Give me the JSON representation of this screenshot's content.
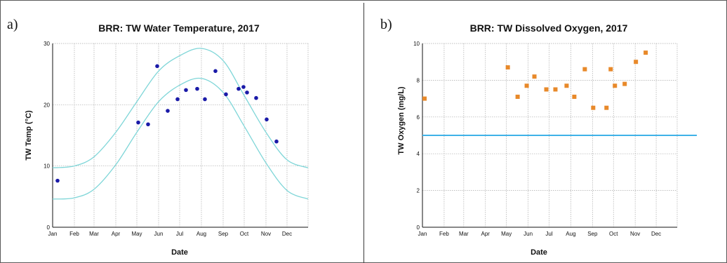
{
  "chart_data": [
    {
      "panel_letter": "a)",
      "type": "scatter",
      "title": "BRR: TW Water Temperature, 2017",
      "xlabel": "Date",
      "ylabel": "TW Temp (°C)",
      "x_ticks": [
        "Jan",
        "Feb",
        "Mar",
        "Apr",
        "May",
        "Jun",
        "Jul",
        "Aug",
        "Sep",
        "Oct",
        "Nov",
        "Dec"
      ],
      "y_ticks": [
        "0",
        "10",
        "20",
        "30"
      ],
      "xlim": [
        "2017-01-01",
        "2017-12-31"
      ],
      "ylim": [
        0,
        30
      ],
      "grid": true,
      "colors": {
        "points": "#1a1aa8",
        "band": "#7fd6d8"
      },
      "series": [
        {
          "values": [
            {
              "x": "2017-01-08",
              "y": 7.6
            },
            {
              "x": "2017-05-03",
              "y": 17.1
            },
            {
              "x": "2017-05-17",
              "y": 16.8
            },
            {
              "x": "2017-05-30",
              "y": 26.3
            },
            {
              "x": "2017-06-14",
              "y": 19.0
            },
            {
              "x": "2017-06-28",
              "y": 20.9
            },
            {
              "x": "2017-07-10",
              "y": 22.4
            },
            {
              "x": "2017-07-26",
              "y": 22.6
            },
            {
              "x": "2017-08-06",
              "y": 20.9
            },
            {
              "x": "2017-08-21",
              "y": 25.5
            },
            {
              "x": "2017-09-05",
              "y": 21.7
            },
            {
              "x": "2017-09-23",
              "y": 22.6
            },
            {
              "x": "2017-09-30",
              "y": 22.9
            },
            {
              "x": "2017-10-05",
              "y": 22.0
            },
            {
              "x": "2017-10-18",
              "y": 21.1
            },
            {
              "x": "2017-11-02",
              "y": 17.6
            },
            {
              "x": "2017-11-16",
              "y": 14.0
            }
          ]
        }
      ],
      "bands": [
        {
          "values": [
            {
              "x": "2017-01-01",
              "y": 9.7
            },
            {
              "x": "2017-02-01",
              "y": 10.0
            },
            {
              "x": "2017-03-01",
              "y": 11.5
            },
            {
              "x": "2017-04-01",
              "y": 15.5
            },
            {
              "x": "2017-05-01",
              "y": 20.5
            },
            {
              "x": "2017-06-01",
              "y": 25.5
            },
            {
              "x": "2017-07-01",
              "y": 28.0
            },
            {
              "x": "2017-08-01",
              "y": 29.2
            },
            {
              "x": "2017-09-01",
              "y": 27.2
            },
            {
              "x": "2017-10-01",
              "y": 21.5
            },
            {
              "x": "2017-11-01",
              "y": 15.5
            },
            {
              "x": "2017-12-01",
              "y": 11.0
            },
            {
              "x": "2017-12-31",
              "y": 9.7
            }
          ]
        },
        {
          "values": [
            {
              "x": "2017-01-01",
              "y": 4.6
            },
            {
              "x": "2017-02-01",
              "y": 4.8
            },
            {
              "x": "2017-03-01",
              "y": 6.2
            },
            {
              "x": "2017-04-01",
              "y": 10.2
            },
            {
              "x": "2017-05-01",
              "y": 15.5
            },
            {
              "x": "2017-06-01",
              "y": 20.5
            },
            {
              "x": "2017-07-01",
              "y": 23.2
            },
            {
              "x": "2017-08-01",
              "y": 24.3
            },
            {
              "x": "2017-09-01",
              "y": 22.0
            },
            {
              "x": "2017-10-01",
              "y": 16.5
            },
            {
              "x": "2017-11-01",
              "y": 10.5
            },
            {
              "x": "2017-12-01",
              "y": 6.0
            },
            {
              "x": "2017-12-31",
              "y": 4.6
            }
          ]
        }
      ],
      "reference_line": null
    },
    {
      "panel_letter": "b)",
      "type": "scatter",
      "title": "BRR: TW Dissolved Oxygen, 2017",
      "xlabel": "Date",
      "ylabel": "TW Oxygen (mg/L)",
      "x_ticks": [
        "Jan",
        "Feb",
        "Mar",
        "Apr",
        "May",
        "Jun",
        "Jul",
        "Aug",
        "Sep",
        "Oct",
        "Nov",
        "Dec"
      ],
      "y_ticks": [
        "0",
        "2",
        "4",
        "6",
        "8",
        "10"
      ],
      "xlim": [
        "2017-01-01",
        "2017-12-31"
      ],
      "ylim": [
        0,
        10
      ],
      "grid": true,
      "colors": {
        "points": "#e8892a",
        "reference": "#3fb2e8"
      },
      "series": [
        {
          "values": [
            {
              "x": "2017-01-04",
              "y": 7.0
            },
            {
              "x": "2017-05-03",
              "y": 8.7
            },
            {
              "x": "2017-05-17",
              "y": 7.1
            },
            {
              "x": "2017-05-30",
              "y": 7.7
            },
            {
              "x": "2017-06-10",
              "y": 8.2
            },
            {
              "x": "2017-06-27",
              "y": 7.5
            },
            {
              "x": "2017-07-10",
              "y": 7.5
            },
            {
              "x": "2017-07-26",
              "y": 7.7
            },
            {
              "x": "2017-08-06",
              "y": 7.1
            },
            {
              "x": "2017-08-21",
              "y": 8.6
            },
            {
              "x": "2017-09-02",
              "y": 6.5
            },
            {
              "x": "2017-09-21",
              "y": 6.5
            },
            {
              "x": "2017-09-27",
              "y": 8.6
            },
            {
              "x": "2017-10-03",
              "y": 7.7
            },
            {
              "x": "2017-10-17",
              "y": 7.8
            },
            {
              "x": "2017-11-02",
              "y": 9.0
            },
            {
              "x": "2017-11-16",
              "y": 9.5
            }
          ]
        }
      ],
      "bands": [],
      "reference_line": {
        "y": 5.0
      }
    }
  ]
}
